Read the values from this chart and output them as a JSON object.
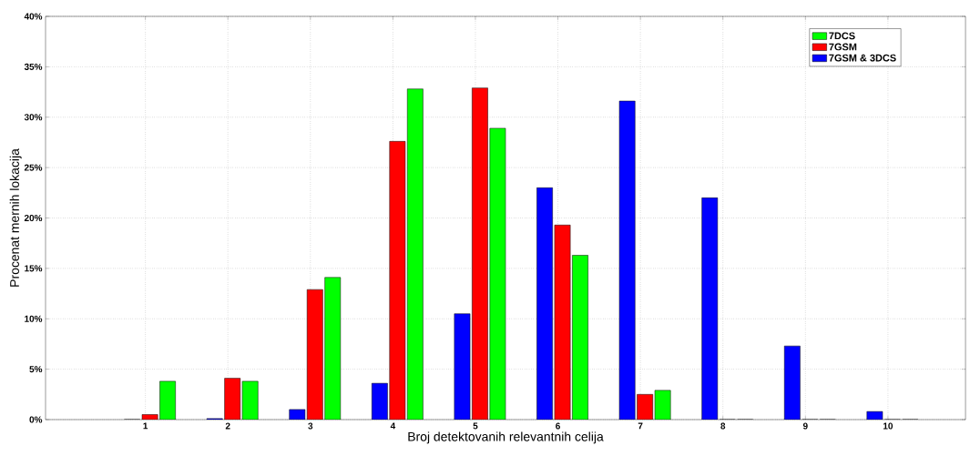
{
  "chart_data": {
    "type": "bar",
    "xlabel": "Broj detektovanih relevantnih celija",
    "ylabel": "Procenat mernih lokacija",
    "categories": [
      "1",
      "2",
      "3",
      "4",
      "5",
      "6",
      "7",
      "8",
      "9",
      "10"
    ],
    "series": [
      {
        "name": "7DCS",
        "color": "#00ff00",
        "values": [
          3.8,
          3.8,
          14.1,
          32.8,
          28.9,
          16.3,
          2.9,
          0,
          0,
          0
        ]
      },
      {
        "name": "7GSM",
        "color": "#ff0000",
        "values": [
          0.5,
          4.1,
          12.9,
          27.6,
          32.9,
          19.3,
          2.5,
          0,
          0,
          0
        ]
      },
      {
        "name": "7GSM & 3DCS",
        "color": "#0000ff",
        "values": [
          0,
          0.1,
          1.0,
          3.6,
          10.5,
          23.0,
          31.6,
          22.0,
          7.3,
          0.8
        ]
      }
    ],
    "ylim": [
      0,
      40
    ],
    "yticks": [
      {
        "value": 0,
        "label": "0%"
      },
      {
        "value": 5,
        "label": "5%"
      },
      {
        "value": 10,
        "label": "10%"
      },
      {
        "value": 15,
        "label": "15%"
      },
      {
        "value": 20,
        "label": "20%"
      },
      {
        "value": 25,
        "label": "25%"
      },
      {
        "value": 30,
        "label": "30%"
      },
      {
        "value": 35,
        "label": "35%"
      },
      {
        "value": 40,
        "label": "40%"
      }
    ],
    "grid": true,
    "legend": "top right"
  }
}
